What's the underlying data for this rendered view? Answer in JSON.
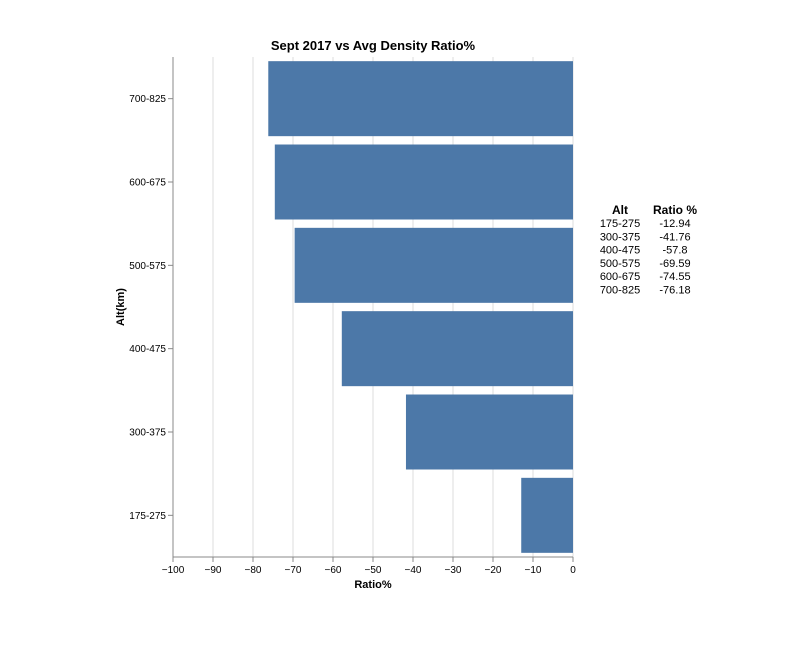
{
  "chart_data": {
    "type": "bar",
    "orientation": "horizontal",
    "title": "Sept 2017 vs Avg Density Ratio%",
    "xlabel": "Ratio%",
    "ylabel": "Alt(km)",
    "xlim": [
      -100,
      0
    ],
    "x_ticks": [
      "−100",
      "−90",
      "−80",
      "−70",
      "−60",
      "−50",
      "−40",
      "−30",
      "−20",
      "−10",
      "0"
    ],
    "grid": true,
    "categories": [
      "700-825",
      "600-675",
      "500-575",
      "400-475",
      "300-375",
      "175-275"
    ],
    "values": [
      -76.18,
      -74.55,
      -69.59,
      -57.8,
      -41.76,
      -12.94
    ],
    "bar_color": "#4c78a8"
  },
  "table": {
    "headers": [
      "Alt",
      "Ratio %"
    ],
    "rows": [
      [
        "175-275",
        "-12.94"
      ],
      [
        "300-375",
        "-41.76"
      ],
      [
        "400-475",
        "-57.8"
      ],
      [
        "500-575",
        "-69.59"
      ],
      [
        "600-675",
        "-74.55"
      ],
      [
        "700-825",
        "-76.18"
      ]
    ]
  }
}
